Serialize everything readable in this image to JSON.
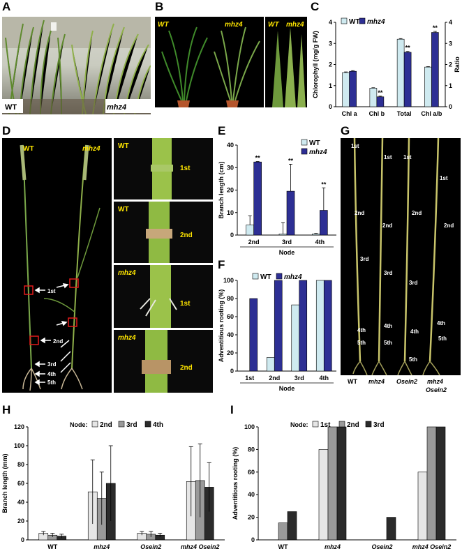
{
  "panel_labels": {
    "A": "A",
    "B": "B",
    "C": "C",
    "D": "D",
    "E": "E",
    "F": "F",
    "G": "G",
    "H": "H",
    "I": "I"
  },
  "colors": {
    "wt": "#cfeaf0",
    "mhz4": "#2d2f94",
    "node1": "#e6e6e6",
    "node2": "#9a9a9a",
    "node3": "#2b2b2b"
  },
  "photo_labels": {
    "a_wt": "WT",
    "a_mhz4": "mhz4",
    "b_wt": "WT",
    "b_mhz4": "mhz4",
    "b2_wt": "WT",
    "b2_mhz4": "mhz4",
    "d_wt": "WT",
    "d_mhz4": "mhz4",
    "d_nodes": [
      "1st",
      "2nd",
      "3rd",
      "4th",
      "5th"
    ],
    "d_nodes_mhz4": [
      "1st",
      "2nd"
    ],
    "d_zoom": [
      {
        "geno": "WT",
        "node": "1st"
      },
      {
        "geno": "WT",
        "node": "2nd"
      },
      {
        "geno": "mhz4",
        "node": "1st"
      },
      {
        "geno": "mhz4",
        "node": "2nd"
      }
    ],
    "g_genotypes": [
      "WT",
      "mhz4",
      "Osein2",
      "mhz4",
      "Osein2"
    ],
    "g_nodes": [
      "1st",
      "2nd",
      "3rd",
      "4th",
      "5th"
    ]
  },
  "chart_data": [
    {
      "id": "C",
      "type": "bar",
      "categories": [
        "Chl a",
        "Chl b",
        "Total",
        "Chl a/b"
      ],
      "series": [
        {
          "name": "WT",
          "values": [
            1.62,
            0.88,
            3.2,
            1.88
          ]
        },
        {
          "name": "mhz4",
          "values": [
            1.68,
            0.47,
            2.58,
            3.52
          ]
        }
      ],
      "errors": [
        [
          0.03,
          0.03
        ],
        [
          0.02,
          0.03
        ],
        [
          0.03,
          0.04
        ],
        [
          0.02,
          0.05
        ]
      ],
      "significance": [
        "",
        "**",
        "**",
        "**"
      ],
      "ylabel": "Chlorophyll (mg/g FW)",
      "y2label": "Ratio",
      "ylim": [
        0,
        4
      ],
      "yticks": [
        0,
        1,
        2,
        3,
        4
      ],
      "y2ticks": [
        0,
        1,
        2,
        3,
        4
      ]
    },
    {
      "id": "E",
      "type": "bar",
      "categories": [
        "2nd",
        "3rd",
        "4th"
      ],
      "series": [
        {
          "name": "WT",
          "values": [
            4.5,
            0.5,
            0.5
          ]
        },
        {
          "name": "mhz4",
          "values": [
            32.5,
            19.5,
            11
          ]
        }
      ],
      "errors": [
        [
          4,
          0.2
        ],
        [
          5,
          12
        ],
        [
          0.2,
          10
        ]
      ],
      "significance": [
        "**",
        "**",
        "**"
      ],
      "xlabel": "Node",
      "ylabel": "Branch length (cm)",
      "ylim": [
        0,
        40
      ],
      "yticks": [
        0,
        10,
        20,
        30,
        40
      ]
    },
    {
      "id": "F",
      "type": "bar",
      "categories": [
        "1st",
        "2nd",
        "3rd",
        "4th"
      ],
      "series": [
        {
          "name": "WT",
          "values": [
            0,
            15,
            73,
            100
          ]
        },
        {
          "name": "mhz4",
          "values": [
            80,
            100,
            100,
            100
          ]
        }
      ],
      "xlabel": "Node",
      "ylabel": "Adventitious rooting (%)",
      "ylim": [
        0,
        100
      ],
      "yticks": [
        0,
        20,
        40,
        60,
        80,
        100
      ]
    },
    {
      "id": "H",
      "type": "bar",
      "legend_title": "Node:",
      "categories": [
        "WT",
        "mhz4",
        "Osein2",
        "mhz4 Osein2"
      ],
      "series": [
        {
          "name": "2nd",
          "values": [
            7,
            51,
            7,
            62
          ]
        },
        {
          "name": "3rd",
          "values": [
            5,
            44,
            6,
            63
          ]
        },
        {
          "name": "4th",
          "values": [
            4,
            60,
            5,
            56
          ]
        }
      ],
      "errors": [
        [
          2,
          34,
          2,
          37
        ],
        [
          2,
          28,
          3,
          39
        ],
        [
          2,
          40,
          2,
          26
        ]
      ],
      "ylabel": "Branch length (mm)",
      "ylim": [
        0,
        120
      ],
      "yticks": [
        0,
        20,
        40,
        60,
        80,
        100,
        120
      ]
    },
    {
      "id": "I",
      "type": "bar",
      "legend_title": "Node:",
      "categories": [
        "WT",
        "mhz4",
        "Osein2",
        "mhz4 Osein2"
      ],
      "series": [
        {
          "name": "1st",
          "values": [
            0,
            80,
            0,
            60
          ]
        },
        {
          "name": "2nd",
          "values": [
            15,
            100,
            0,
            100
          ]
        },
        {
          "name": "3rd",
          "values": [
            25,
            100,
            20,
            100
          ]
        }
      ],
      "ylabel": "Adventitious rooting  (%)",
      "ylim": [
        0,
        100
      ],
      "yticks": [
        0,
        20,
        40,
        60,
        80,
        100
      ]
    }
  ]
}
